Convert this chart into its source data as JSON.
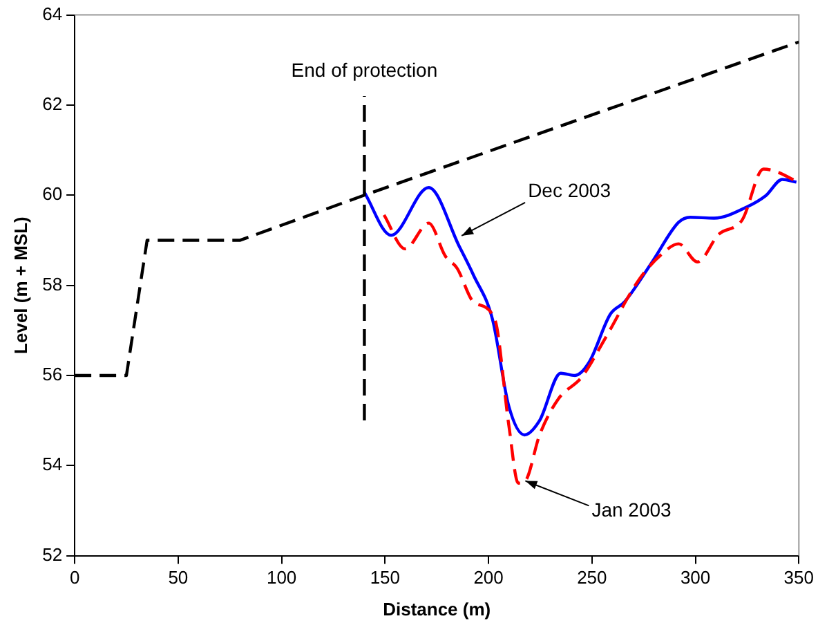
{
  "chart_data": {
    "type": "line",
    "xlabel": "Distance (m)",
    "ylabel": "Level (m + MSL)",
    "xlim": [
      0,
      350
    ],
    "xticks": [
      0,
      50,
      100,
      150,
      200,
      250,
      300,
      350
    ],
    "ylim": [
      52,
      64
    ],
    "yticks": [
      52,
      54,
      56,
      58,
      60,
      62,
      64
    ],
    "grid": false,
    "legend": false,
    "marker": "none",
    "series": [
      {
        "color": "#000000",
        "line_style": "dashed",
        "x": [
          0,
          25,
          35,
          80,
          140,
          350
        ],
        "values": [
          56,
          56,
          59,
          59,
          60,
          63.4
        ]
      },
      {
        "color": "#000000",
        "line_style": "dashed",
        "x": [
          140,
          140
        ],
        "values": [
          55,
          62.2
        ]
      },
      {
        "color": "#ff0000",
        "line_style": "dashed",
        "x": [
          149.5,
          159.7,
          171.1,
          179.1,
          184.8,
          192.8,
          203,
          209.8,
          214.4,
          217.8,
          224.7,
          233.8,
          245.2,
          256.5,
          272.5,
          283.9,
          291.9,
          301,
          311.2,
          322.6,
          332.9,
          338.6,
          348.8
        ],
        "values": [
          59.56,
          58.81,
          59.38,
          58.65,
          58.38,
          57.63,
          57.25,
          54.9,
          53.61,
          53.66,
          54.68,
          55.48,
          55.97,
          56.83,
          58.11,
          58.7,
          58.92,
          58.52,
          59.13,
          59.45,
          60.58,
          60.53,
          60.31
        ]
      },
      {
        "color": "#0000ff",
        "line_style": "solid",
        "x": [
          139.9,
          152.9,
          171.1,
          185.9,
          192.8,
          201.9,
          209.8,
          217.4,
          224.7,
          234.9,
          241.8,
          248.6,
          258.9,
          265.7,
          279.4,
          291.9,
          297.5,
          309,
          324.9,
          334,
          342,
          348.8
        ],
        "values": [
          60.07,
          59.11,
          60.17,
          58.86,
          58.22,
          57.25,
          55.32,
          54.68,
          55.0,
          56.05,
          56.0,
          56.29,
          57.36,
          57.63,
          58.54,
          59.4,
          59.51,
          59.49,
          59.74,
          59.99,
          60.35,
          60.29
        ]
      }
    ],
    "annotations": [
      {
        "text": "End of protection",
        "x": 140,
        "y": 62.2
      },
      {
        "text": "Dec 2003",
        "x": 187,
        "y": 59.1
      },
      {
        "text": "Jan 2003",
        "x": 217.8,
        "y": 53.66
      }
    ]
  }
}
